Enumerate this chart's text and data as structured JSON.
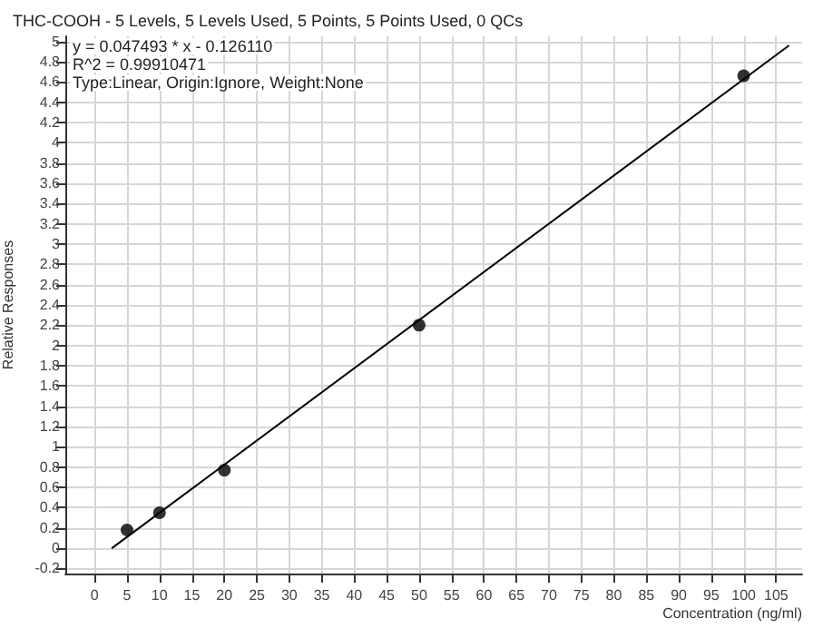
{
  "chart_data": {
    "type": "scatter",
    "title": "THC-COOH - 5 Levels, 5 Levels Used, 5 Points, 5 Points Used, 0 QCs",
    "xlabel": "Concentration (ng/ml)",
    "ylabel": "Relative Responses",
    "annotations": [
      "y = 0.047493 * x - 0.126110",
      "R^2 = 0.99910471",
      "Type:Linear, Origin:Ignore, Weight:None"
    ],
    "series": [
      {
        "type": "scatter",
        "color": "#000000",
        "x": [
          5,
          10,
          20,
          50,
          100
        ],
        "values": [
          0.18,
          0.35,
          0.77,
          2.2,
          4.66
        ],
        "marker": "circle"
      },
      {
        "type": "line",
        "color": "#000000",
        "x": [
          2.66,
          107
        ],
        "values": [
          0,
          4.96
        ],
        "marker": "none"
      }
    ],
    "xlim": [
      -4.5,
      109
    ],
    "xticks": [
      0,
      5,
      10,
      15,
      20,
      25,
      30,
      35,
      40,
      45,
      50,
      55,
      60,
      65,
      70,
      75,
      80,
      85,
      90,
      95,
      100,
      105
    ],
    "ylim": [
      -0.25,
      5.05
    ],
    "yticks": [
      -0.2,
      0,
      0.2,
      0.4,
      0.6,
      0.8,
      1,
      1.2,
      1.4,
      1.6,
      1.8,
      2,
      2.2,
      2.4,
      2.6,
      2.8,
      3,
      3.2,
      3.4,
      3.6,
      3.8,
      4,
      4.2,
      4.4,
      4.6,
      4.8,
      5
    ],
    "grid": true,
    "legend": false
  }
}
